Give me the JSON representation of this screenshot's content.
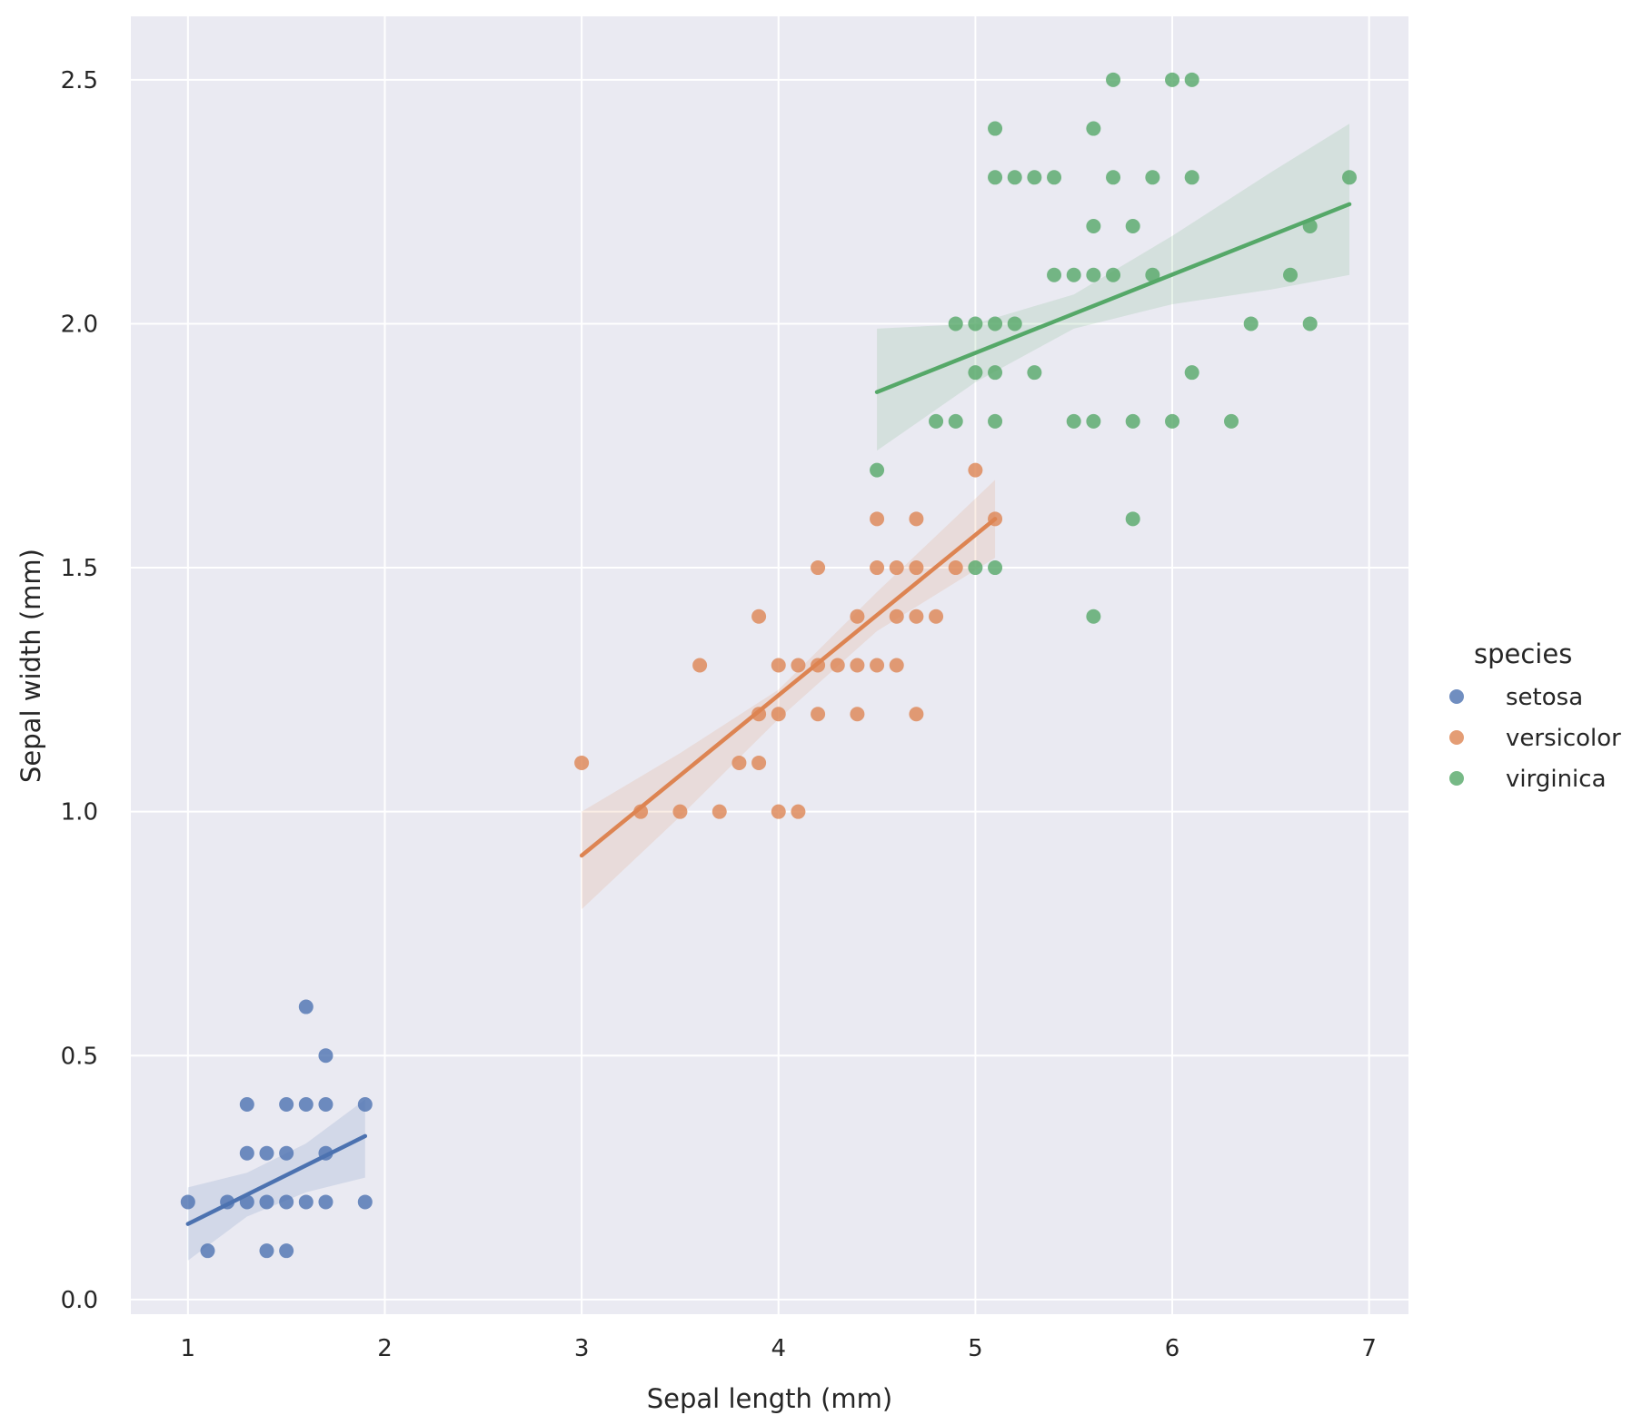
{
  "chart_data": {
    "type": "scatter",
    "xlabel": "Sepal length (mm)",
    "ylabel": "Sepal width (mm)",
    "xlim": [
      0.71,
      7.2
    ],
    "ylim": [
      -0.03,
      2.63
    ],
    "xticks": [
      1,
      2,
      3,
      4,
      5,
      6,
      7
    ],
    "yticks": [
      0.0,
      0.5,
      1.0,
      1.5,
      2.0,
      2.5
    ],
    "xtick_labels": [
      "1",
      "2",
      "3",
      "4",
      "5",
      "6",
      "7"
    ],
    "ytick_labels": [
      "0.0",
      "0.5",
      "1.0",
      "1.5",
      "2.0",
      "2.5"
    ],
    "grid": true,
    "legend": {
      "title": "species",
      "placement": "right",
      "entries": [
        "setosa",
        "versicolor",
        "virginica"
      ]
    },
    "series": [
      {
        "name": "setosa",
        "color": "#4c72b0",
        "points": [
          [
            1.0,
            0.2
          ],
          [
            1.1,
            0.1
          ],
          [
            1.2,
            0.2
          ],
          [
            1.3,
            0.2
          ],
          [
            1.3,
            0.3
          ],
          [
            1.3,
            0.4
          ],
          [
            1.4,
            0.1
          ],
          [
            1.4,
            0.2
          ],
          [
            1.4,
            0.3
          ],
          [
            1.5,
            0.1
          ],
          [
            1.5,
            0.2
          ],
          [
            1.5,
            0.3
          ],
          [
            1.5,
            0.4
          ],
          [
            1.6,
            0.2
          ],
          [
            1.6,
            0.4
          ],
          [
            1.6,
            0.6
          ],
          [
            1.7,
            0.2
          ],
          [
            1.7,
            0.3
          ],
          [
            1.7,
            0.4
          ],
          [
            1.7,
            0.5
          ],
          [
            1.9,
            0.2
          ],
          [
            1.9,
            0.4
          ]
        ],
        "fit": [
          [
            1.0,
            0.155
          ],
          [
            1.9,
            0.335
          ]
        ],
        "ci": [
          [
            1.0,
            0.08,
            0.23
          ],
          [
            1.3,
            0.17,
            0.26
          ],
          [
            1.6,
            0.22,
            0.32
          ],
          [
            1.9,
            0.25,
            0.41
          ]
        ]
      },
      {
        "name": "versicolor",
        "color": "#dd8452",
        "points": [
          [
            3.0,
            1.1
          ],
          [
            3.3,
            1.0
          ],
          [
            3.5,
            1.0
          ],
          [
            3.6,
            1.3
          ],
          [
            3.7,
            1.0
          ],
          [
            3.8,
            1.1
          ],
          [
            3.9,
            1.1
          ],
          [
            3.9,
            1.2
          ],
          [
            3.9,
            1.4
          ],
          [
            4.0,
            1.0
          ],
          [
            4.0,
            1.2
          ],
          [
            4.0,
            1.3
          ],
          [
            4.1,
            1.0
          ],
          [
            4.1,
            1.3
          ],
          [
            4.2,
            1.2
          ],
          [
            4.2,
            1.3
          ],
          [
            4.2,
            1.5
          ],
          [
            4.3,
            1.3
          ],
          [
            4.4,
            1.2
          ],
          [
            4.4,
            1.3
          ],
          [
            4.4,
            1.4
          ],
          [
            4.5,
            1.3
          ],
          [
            4.5,
            1.5
          ],
          [
            4.5,
            1.6
          ],
          [
            4.6,
            1.3
          ],
          [
            4.6,
            1.4
          ],
          [
            4.6,
            1.5
          ],
          [
            4.7,
            1.2
          ],
          [
            4.7,
            1.4
          ],
          [
            4.7,
            1.5
          ],
          [
            4.7,
            1.6
          ],
          [
            4.8,
            1.4
          ],
          [
            4.9,
            1.5
          ],
          [
            5.0,
            1.7
          ],
          [
            5.1,
            1.6
          ]
        ],
        "fit": [
          [
            3.0,
            0.91
          ],
          [
            5.1,
            1.6
          ]
        ],
        "ci": [
          [
            3.0,
            0.8,
            1.0
          ],
          [
            3.5,
            0.99,
            1.12
          ],
          [
            4.0,
            1.19,
            1.25
          ],
          [
            4.5,
            1.37,
            1.45
          ],
          [
            5.1,
            1.52,
            1.68
          ]
        ]
      },
      {
        "name": "virginica",
        "color": "#55a868",
        "points": [
          [
            4.5,
            1.7
          ],
          [
            4.8,
            1.8
          ],
          [
            4.9,
            1.8
          ],
          [
            4.9,
            2.0
          ],
          [
            5.0,
            1.5
          ],
          [
            5.0,
            1.9
          ],
          [
            5.0,
            2.0
          ],
          [
            5.1,
            1.5
          ],
          [
            5.1,
            1.8
          ],
          [
            5.1,
            1.9
          ],
          [
            5.1,
            2.0
          ],
          [
            5.1,
            2.3
          ],
          [
            5.1,
            2.4
          ],
          [
            5.2,
            2.0
          ],
          [
            5.2,
            2.3
          ],
          [
            5.3,
            1.9
          ],
          [
            5.3,
            2.3
          ],
          [
            5.4,
            2.1
          ],
          [
            5.4,
            2.3
          ],
          [
            5.5,
            1.8
          ],
          [
            5.5,
            2.1
          ],
          [
            5.6,
            1.4
          ],
          [
            5.6,
            1.8
          ],
          [
            5.6,
            2.1
          ],
          [
            5.6,
            2.2
          ],
          [
            5.6,
            2.4
          ],
          [
            5.7,
            2.1
          ],
          [
            5.7,
            2.3
          ],
          [
            5.7,
            2.5
          ],
          [
            5.8,
            1.6
          ],
          [
            5.8,
            1.8
          ],
          [
            5.8,
            2.2
          ],
          [
            5.9,
            2.1
          ],
          [
            5.9,
            2.3
          ],
          [
            6.0,
            1.8
          ],
          [
            6.0,
            2.5
          ],
          [
            6.1,
            1.9
          ],
          [
            6.1,
            2.3
          ],
          [
            6.1,
            2.5
          ],
          [
            6.3,
            1.8
          ],
          [
            6.4,
            2.0
          ],
          [
            6.6,
            2.1
          ],
          [
            6.7,
            2.0
          ],
          [
            6.7,
            2.2
          ],
          [
            6.9,
            2.3
          ]
        ],
        "fit": [
          [
            4.5,
            1.86
          ],
          [
            6.9,
            2.245
          ]
        ],
        "ci": [
          [
            4.5,
            1.74,
            1.99
          ],
          [
            5.0,
            1.88,
            2.0
          ],
          [
            5.5,
            1.99,
            2.06
          ],
          [
            6.0,
            2.04,
            2.18
          ],
          [
            6.5,
            2.07,
            2.31
          ],
          [
            6.9,
            2.1,
            2.41
          ]
        ]
      }
    ]
  }
}
